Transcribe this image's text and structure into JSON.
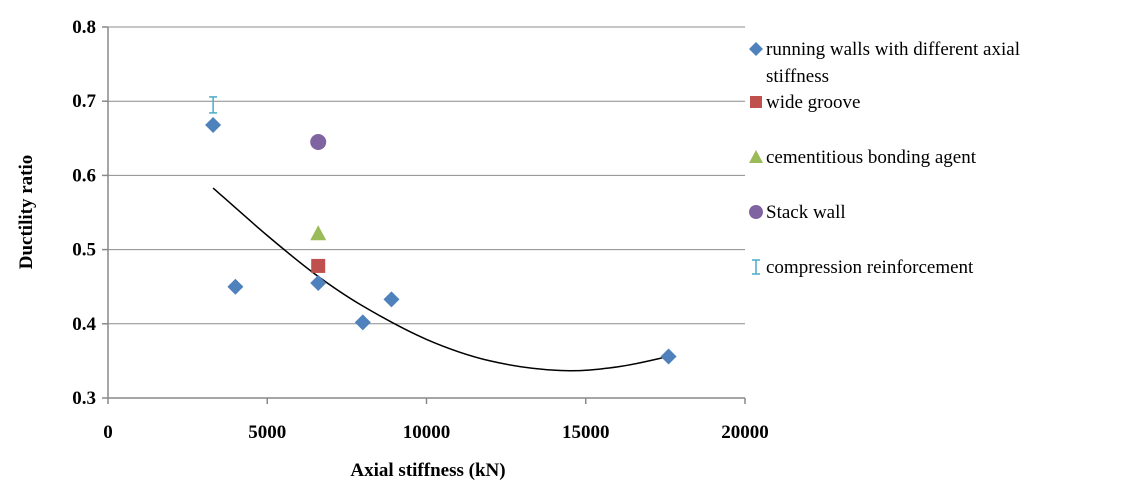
{
  "chart_data": {
    "type": "scatter",
    "xlabel": "Axial stiffness (kN)",
    "ylabel": "Ductility ratio",
    "xlim": [
      0,
      20000
    ],
    "ylim": [
      0.3,
      0.8
    ],
    "x_ticks": [
      0,
      5000,
      10000,
      15000,
      20000
    ],
    "y_ticks": [
      0.3,
      0.4,
      0.5,
      0.6,
      0.7,
      0.8
    ],
    "x_tick_labels": [
      "0",
      "5000",
      "10000",
      "15000",
      "20000"
    ],
    "y_tick_labels": [
      "0.3",
      "0.4",
      "0.5",
      "0.6",
      "0.7",
      "0.8"
    ],
    "horizontal_grid": true,
    "legend_position": "right",
    "series": [
      {
        "name": "running walls with different axial stiffness",
        "legend_lines": [
          "running walls with different axial",
          "stiffness"
        ],
        "marker": "diamond",
        "color": "#4f81bd",
        "points": [
          {
            "x": 3300,
            "y": 0.668
          },
          {
            "x": 4000,
            "y": 0.45
          },
          {
            "x": 6600,
            "y": 0.455
          },
          {
            "x": 8000,
            "y": 0.402
          },
          {
            "x": 8900,
            "y": 0.433
          },
          {
            "x": 17600,
            "y": 0.356
          }
        ]
      },
      {
        "name": "wide groove",
        "legend_lines": [
          "wide groove"
        ],
        "marker": "square",
        "color": "#c0504d",
        "points": [
          {
            "x": 6600,
            "y": 0.478
          }
        ]
      },
      {
        "name": "cementitious bonding agent",
        "legend_lines": [
          "cementitious bonding agent"
        ],
        "marker": "triangle",
        "color": "#9bbb59",
        "points": [
          {
            "x": 6600,
            "y": 0.522
          }
        ]
      },
      {
        "name": "Stack wall",
        "legend_lines": [
          "Stack wall"
        ],
        "marker": "circle",
        "color": "#8064a2",
        "points": [
          {
            "x": 6600,
            "y": 0.645
          }
        ]
      },
      {
        "name": "compression reinforcement",
        "legend_lines": [
          "compression reinforcement"
        ],
        "marker": "xbar",
        "color": "#4bacc6",
        "points": [
          {
            "x": 3300,
            "y": 0.695
          }
        ]
      }
    ],
    "trendline": {
      "type": "polynomial",
      "color": "#000000",
      "points": [
        {
          "x": 3300,
          "y": 0.583
        },
        {
          "x": 5000,
          "y": 0.519
        },
        {
          "x": 6500,
          "y": 0.467
        },
        {
          "x": 8000,
          "y": 0.424
        },
        {
          "x": 10000,
          "y": 0.379
        },
        {
          "x": 12000,
          "y": 0.35
        },
        {
          "x": 14200,
          "y": 0.337
        },
        {
          "x": 16000,
          "y": 0.342
        },
        {
          "x": 17600,
          "y": 0.356
        }
      ]
    }
  }
}
